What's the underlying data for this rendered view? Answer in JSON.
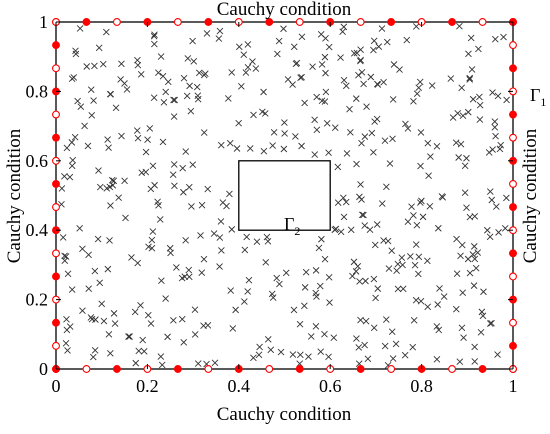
{
  "chart_data": {
    "type": "scatter",
    "title": "Cauchy condition",
    "xlabel": "Cauchy condition",
    "ylabel_left": "Cauchy condition",
    "ylabel_right": "Cauchy condition",
    "xlim": [
      0,
      1
    ],
    "ylim": [
      0,
      1
    ],
    "x_ticks": [
      "0",
      "0.2",
      "0.4",
      "0.6",
      "0.8",
      "1"
    ],
    "y_ticks": [
      "0",
      "0.2",
      "0.4",
      "0.6",
      "0.8",
      "1"
    ],
    "grid": false,
    "outer_boundary_label": "Γ",
    "outer_boundary_sub": "1",
    "inner_boundary_label": "Γ",
    "inner_boundary_sub": "2",
    "inner_rectangle": {
      "x": [
        0.4,
        0.6
      ],
      "y": [
        0.4,
        0.6
      ]
    },
    "boundary_marker_color": "#ff0000",
    "interior_marker_color": "#333333",
    "interior_marker": "x",
    "interior_point_count": 500,
    "boundary_points_per_side": 16
  }
}
